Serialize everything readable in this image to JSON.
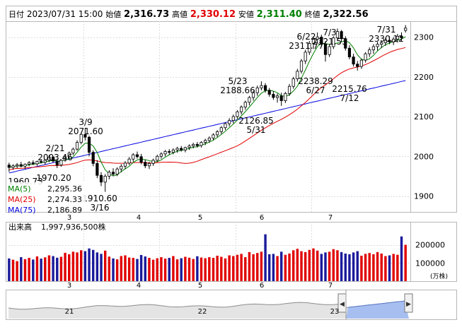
{
  "header": {
    "date_label": "日付",
    "date": "2023/07/31 15:00",
    "open_label": "始値",
    "open": "2,316.73",
    "high_label": "高値",
    "high": "2,330.12",
    "low_label": "安値",
    "low": "2,311.40",
    "close_label": "終値",
    "close": "2,322.56"
  },
  "colors": {
    "up_candle": "#ffffff",
    "down_candle": "#000000",
    "ma5": "#008000",
    "ma25": "#e00000",
    "ma75": "#0000e0",
    "vol_up": "#e00000",
    "vol_down": "#1a1a9a",
    "navigator_fill": "#a7bff0"
  },
  "chart_data": [
    {
      "type": "candlestick",
      "title": "",
      "yaxis_ticks": [
        "1900",
        "2000",
        "2100",
        "2200",
        "2300"
      ],
      "ylim": [
        1860,
        2340
      ],
      "xaxis_month_labels": [
        "3",
        "4",
        "5",
        "6",
        "7"
      ],
      "grid": true,
      "legend_position": "bottom-left",
      "ma_legend": [
        {
          "name": "MA(5)",
          "value": "2,295.36"
        },
        {
          "name": "MA(25)",
          "value": "2,274.33"
        },
        {
          "name": "MA(75)",
          "value": "2,186.89"
        }
      ],
      "annotations": [
        {
          "date": "1960.73",
          "value": "",
          "kind": "low-edge"
        },
        {
          "date": "2/21",
          "value": "2003.46",
          "kind": "high"
        },
        {
          "date": "",
          "value": "1970.20",
          "kind": "low"
        },
        {
          "date": "3/9",
          "value": "2071.60",
          "kind": "high"
        },
        {
          "date": "3/16",
          "value": "1910.60",
          "kind": "low"
        },
        {
          "date": "5/23",
          "value": "2188.66",
          "kind": "high"
        },
        {
          "date": "5/31",
          "value": "2126.85",
          "kind": "low"
        },
        {
          "date": "6/22",
          "value": "2311.77",
          "kind": "high"
        },
        {
          "date": "7/3",
          "value": "2321.53",
          "kind": "high"
        },
        {
          "date": "6/27",
          "value": "2238.29",
          "kind": "low"
        },
        {
          "date": "7/12",
          "value": "2215.76",
          "kind": "low"
        },
        {
          "date": "7/31",
          "value": "2330.12",
          "kind": "high"
        }
      ],
      "candles": [
        {
          "o": 1978,
          "h": 1984,
          "l": 1960.73,
          "c": 1972
        },
        {
          "o": 1972,
          "h": 1980,
          "l": 1966,
          "c": 1976
        },
        {
          "o": 1976,
          "h": 1983,
          "l": 1970,
          "c": 1979
        },
        {
          "o": 1979,
          "h": 1986,
          "l": 1972,
          "c": 1975
        },
        {
          "o": 1975,
          "h": 1982,
          "l": 1968,
          "c": 1980
        },
        {
          "o": 1980,
          "h": 1988,
          "l": 1975,
          "c": 1984
        },
        {
          "o": 1984,
          "h": 1990,
          "l": 1978,
          "c": 1981
        },
        {
          "o": 1981,
          "h": 1989,
          "l": 1976,
          "c": 1987
        },
        {
          "o": 1987,
          "h": 1993,
          "l": 1982,
          "c": 1985
        },
        {
          "o": 1985,
          "h": 1992,
          "l": 1979,
          "c": 1990
        },
        {
          "o": 1990,
          "h": 2003.46,
          "l": 1985,
          "c": 1998
        },
        {
          "o": 1998,
          "h": 2001,
          "l": 1984,
          "c": 1988
        },
        {
          "o": 1988,
          "h": 1994,
          "l": 1970.2,
          "c": 1978
        },
        {
          "o": 1978,
          "h": 1992,
          "l": 1974,
          "c": 1990
        },
        {
          "o": 1990,
          "h": 2002,
          "l": 1986,
          "c": 1999
        },
        {
          "o": 1999,
          "h": 2012,
          "l": 1994,
          "c": 2008
        },
        {
          "o": 2008,
          "h": 2022,
          "l": 2003,
          "c": 2018
        },
        {
          "o": 2018,
          "h": 2040,
          "l": 2014,
          "c": 2035
        },
        {
          "o": 2035,
          "h": 2060,
          "l": 2030,
          "c": 2055
        },
        {
          "o": 2055,
          "h": 2071.6,
          "l": 2040,
          "c": 2048
        },
        {
          "o": 2048,
          "h": 2052,
          "l": 2000,
          "c": 2010
        },
        {
          "o": 2010,
          "h": 2015,
          "l": 1975,
          "c": 1982
        },
        {
          "o": 1982,
          "h": 1990,
          "l": 1945,
          "c": 1952
        },
        {
          "o": 1952,
          "h": 1960,
          "l": 1925,
          "c": 1935
        },
        {
          "o": 1935,
          "h": 1955,
          "l": 1910.6,
          "c": 1950
        },
        {
          "o": 1950,
          "h": 1965,
          "l": 1942,
          "c": 1960
        },
        {
          "o": 1960,
          "h": 1970,
          "l": 1950,
          "c": 1955
        },
        {
          "o": 1955,
          "h": 1972,
          "l": 1950,
          "c": 1968
        },
        {
          "o": 1968,
          "h": 1980,
          "l": 1960,
          "c": 1975
        },
        {
          "o": 1975,
          "h": 1988,
          "l": 1968,
          "c": 1983
        },
        {
          "o": 1983,
          "h": 1998,
          "l": 1978,
          "c": 1993
        },
        {
          "o": 1993,
          "h": 2008,
          "l": 1986,
          "c": 2004
        },
        {
          "o": 2004,
          "h": 2012,
          "l": 1994,
          "c": 1999
        },
        {
          "o": 1999,
          "h": 2006,
          "l": 1980,
          "c": 1985
        },
        {
          "o": 1985,
          "h": 1992,
          "l": 1970,
          "c": 1976
        },
        {
          "o": 1976,
          "h": 1986,
          "l": 1968,
          "c": 1982
        },
        {
          "o": 1982,
          "h": 1994,
          "l": 1976,
          "c": 1990
        },
        {
          "o": 1990,
          "h": 2004,
          "l": 1985,
          "c": 2000
        },
        {
          "o": 2000,
          "h": 2010,
          "l": 1994,
          "c": 2006
        },
        {
          "o": 2006,
          "h": 2016,
          "l": 2000,
          "c": 2012
        },
        {
          "o": 2012,
          "h": 2018,
          "l": 2004,
          "c": 2010
        },
        {
          "o": 2010,
          "h": 2020,
          "l": 2005,
          "c": 2016
        },
        {
          "o": 2016,
          "h": 2024,
          "l": 2009,
          "c": 2020
        },
        {
          "o": 2020,
          "h": 2026,
          "l": 2012,
          "c": 2016
        },
        {
          "o": 2016,
          "h": 2024,
          "l": 2010,
          "c": 2022
        },
        {
          "o": 2022,
          "h": 2030,
          "l": 2016,
          "c": 2026
        },
        {
          "o": 2026,
          "h": 2034,
          "l": 2020,
          "c": 2030
        },
        {
          "o": 2030,
          "h": 2036,
          "l": 2022,
          "c": 2027
        },
        {
          "o": 2027,
          "h": 2038,
          "l": 2022,
          "c": 2035
        },
        {
          "o": 2035,
          "h": 2044,
          "l": 2028,
          "c": 2040
        },
        {
          "o": 2040,
          "h": 2050,
          "l": 2034,
          "c": 2046
        },
        {
          "o": 2046,
          "h": 2058,
          "l": 2040,
          "c": 2054
        },
        {
          "o": 2054,
          "h": 2066,
          "l": 2048,
          "c": 2062
        },
        {
          "o": 2062,
          "h": 2076,
          "l": 2056,
          "c": 2072
        },
        {
          "o": 2072,
          "h": 2086,
          "l": 2066,
          "c": 2082
        },
        {
          "o": 2082,
          "h": 2096,
          "l": 2075,
          "c": 2090
        },
        {
          "o": 2090,
          "h": 2105,
          "l": 2083,
          "c": 2100
        },
        {
          "o": 2100,
          "h": 2116,
          "l": 2094,
          "c": 2112
        },
        {
          "o": 2112,
          "h": 2128,
          "l": 2105,
          "c": 2124
        },
        {
          "o": 2124,
          "h": 2140,
          "l": 2117,
          "c": 2136
        },
        {
          "o": 2136,
          "h": 2152,
          "l": 2128,
          "c": 2148
        },
        {
          "o": 2148,
          "h": 2165,
          "l": 2140,
          "c": 2160
        },
        {
          "o": 2160,
          "h": 2178,
          "l": 2152,
          "c": 2172
        },
        {
          "o": 2172,
          "h": 2188.66,
          "l": 2166,
          "c": 2178
        },
        {
          "o": 2178,
          "h": 2184,
          "l": 2160,
          "c": 2166
        },
        {
          "o": 2166,
          "h": 2172,
          "l": 2150,
          "c": 2156
        },
        {
          "o": 2156,
          "h": 2164,
          "l": 2142,
          "c": 2148
        },
        {
          "o": 2148,
          "h": 2158,
          "l": 2135,
          "c": 2152
        },
        {
          "o": 2152,
          "h": 2160,
          "l": 2126.85,
          "c": 2140
        },
        {
          "o": 2140,
          "h": 2162,
          "l": 2134,
          "c": 2158
        },
        {
          "o": 2158,
          "h": 2182,
          "l": 2152,
          "c": 2176
        },
        {
          "o": 2176,
          "h": 2200,
          "l": 2170,
          "c": 2195
        },
        {
          "o": 2195,
          "h": 2220,
          "l": 2188,
          "c": 2214
        },
        {
          "o": 2214,
          "h": 2245,
          "l": 2208,
          "c": 2240
        },
        {
          "o": 2240,
          "h": 2268,
          "l": 2232,
          "c": 2262
        },
        {
          "o": 2262,
          "h": 2290,
          "l": 2255,
          "c": 2284
        },
        {
          "o": 2284,
          "h": 2302,
          "l": 2270,
          "c": 2295
        },
        {
          "o": 2295,
          "h": 2311.77,
          "l": 2285,
          "c": 2300
        },
        {
          "o": 2300,
          "h": 2306,
          "l": 2276,
          "c": 2282
        },
        {
          "o": 2282,
          "h": 2290,
          "l": 2238.29,
          "c": 2256
        },
        {
          "o": 2256,
          "h": 2282,
          "l": 2250,
          "c": 2276
        },
        {
          "o": 2276,
          "h": 2302,
          "l": 2270,
          "c": 2298
        },
        {
          "o": 2298,
          "h": 2321.53,
          "l": 2290,
          "c": 2314
        },
        {
          "o": 2314,
          "h": 2318,
          "l": 2288,
          "c": 2296
        },
        {
          "o": 2296,
          "h": 2302,
          "l": 2266,
          "c": 2272
        },
        {
          "o": 2272,
          "h": 2280,
          "l": 2244,
          "c": 2250
        },
        {
          "o": 2250,
          "h": 2258,
          "l": 2226,
          "c": 2232
        },
        {
          "o": 2232,
          "h": 2240,
          "l": 2215.76,
          "c": 2226
        },
        {
          "o": 2226,
          "h": 2246,
          "l": 2220,
          "c": 2242
        },
        {
          "o": 2242,
          "h": 2262,
          "l": 2236,
          "c": 2258
        },
        {
          "o": 2258,
          "h": 2274,
          "l": 2250,
          "c": 2268
        },
        {
          "o": 2268,
          "h": 2282,
          "l": 2258,
          "c": 2276
        },
        {
          "o": 2276,
          "h": 2288,
          "l": 2266,
          "c": 2282
        },
        {
          "o": 2282,
          "h": 2292,
          "l": 2272,
          "c": 2286
        },
        {
          "o": 2286,
          "h": 2298,
          "l": 2278,
          "c": 2292
        },
        {
          "o": 2292,
          "h": 2302,
          "l": 2282,
          "c": 2288
        },
        {
          "o": 2288,
          "h": 2300,
          "l": 2280,
          "c": 2295
        },
        {
          "o": 2295,
          "h": 2308,
          "l": 2286,
          "c": 2302
        },
        {
          "o": 2302,
          "h": 2312,
          "l": 2290,
          "c": 2298
        },
        {
          "o": 2316.73,
          "h": 2330.12,
          "l": 2311.4,
          "c": 2322.56
        }
      ]
    },
    {
      "type": "bar",
      "title": "出来高",
      "summary_value": "1,997,936,500株",
      "yaxis_ticks": [
        "100000",
        "200000"
      ],
      "unit": "(万株)",
      "ylim": [
        0,
        280000
      ],
      "xaxis_month_labels": [
        "3",
        "4",
        "5",
        "6",
        "7"
      ],
      "values": [
        125000,
        118000,
        110000,
        132000,
        121000,
        128000,
        119000,
        136000,
        124000,
        131000,
        142000,
        138000,
        129000,
        134000,
        156000,
        148000,
        162000,
        158000,
        170000,
        165000,
        180000,
        172000,
        158000,
        150000,
        168000,
        135000,
        125000,
        120000,
        138000,
        142000,
        130000,
        128000,
        122000,
        144000,
        136000,
        128000,
        118000,
        126000,
        132000,
        124000,
        128000,
        138000,
        120000,
        126000,
        134000,
        129000,
        122000,
        137000,
        130000,
        126000,
        132000,
        128000,
        140000,
        134000,
        125000,
        142000,
        138000,
        145000,
        150000,
        132000,
        160000,
        148000,
        155000,
        162000,
        258000,
        148000,
        150000,
        138000,
        162000,
        145000,
        152000,
        170000,
        178000,
        165000,
        160000,
        172000,
        180000,
        168000,
        150000,
        158000,
        162000,
        176000,
        170000,
        160000,
        152000,
        148000,
        158000,
        165000,
        140000,
        150000,
        155000,
        148000,
        160000,
        152000,
        138000,
        142000,
        150000,
        145000,
        246000,
        200000
      ]
    }
  ],
  "volume_header": {
    "label": "出来高",
    "value": "1,997,936,500株"
  },
  "navigator": {
    "year_labels": [
      "21",
      "22",
      "23"
    ]
  }
}
